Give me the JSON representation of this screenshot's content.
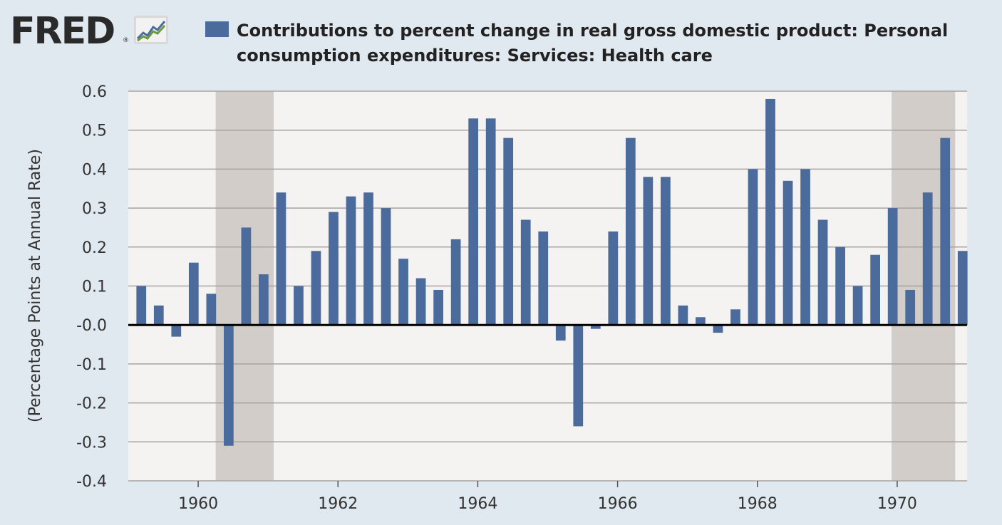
{
  "brand": {
    "name": "FRED",
    "reg": "®",
    "icon": "fred-chart-icon"
  },
  "colors": {
    "bar": "#4a6b9b",
    "recession": "#d2cdc9",
    "plot_bg": "#f5f3f2",
    "grid": "#a9a3a0",
    "zero": "#000000"
  },
  "chart_data": {
    "type": "bar",
    "title": "Contributions to percent change in real gross domestic product: Personal consumption expenditures: Services: Health care",
    "ylabel": "(Percentage Points at Annual Rate)",
    "xlabel": "",
    "ylim": [
      -0.4,
      0.6
    ],
    "xlim": [
      1959.0,
      1971.0
    ],
    "yticks": [
      0.6,
      0.5,
      0.4,
      0.3,
      0.2,
      0.1,
      -0.0,
      -0.1,
      -0.2,
      -0.3,
      -0.4
    ],
    "ytick_labels": [
      "0.6",
      "0.5",
      "0.4",
      "0.3",
      "0.2",
      "0.1",
      "-0.0",
      "-0.1",
      "-0.2",
      "-0.3",
      "-0.4"
    ],
    "xticks": [
      1960,
      1962,
      1964,
      1966,
      1968,
      1970
    ],
    "xtick_labels": [
      "1960",
      "1962",
      "1964",
      "1966",
      "1968",
      "1970"
    ],
    "recessions": [
      [
        1960.25,
        1961.08
      ],
      [
        1969.92,
        1970.83
      ]
    ],
    "categories": [
      "1959Q2",
      "1959Q3",
      "1959Q4",
      "1960Q1",
      "1960Q2",
      "1960Q3",
      "1960Q4",
      "1961Q1",
      "1961Q2",
      "1961Q3",
      "1961Q4",
      "1962Q1",
      "1962Q2",
      "1962Q3",
      "1962Q4",
      "1963Q1",
      "1963Q2",
      "1963Q3",
      "1963Q4",
      "1964Q1",
      "1964Q2",
      "1964Q3",
      "1964Q4",
      "1965Q1",
      "1965Q2",
      "1965Q3",
      "1965Q4",
      "1966Q1",
      "1966Q2",
      "1966Q3",
      "1966Q4",
      "1967Q1",
      "1967Q2",
      "1967Q3",
      "1967Q4",
      "1968Q1",
      "1968Q2",
      "1968Q3",
      "1968Q4",
      "1969Q1",
      "1969Q2",
      "1969Q3",
      "1969Q4",
      "1970Q1",
      "1970Q2",
      "1970Q3",
      "1970Q4",
      "1971Q1"
    ],
    "x": [
      1959.25,
      1959.5,
      1959.75,
      1960.0,
      1960.25,
      1960.5,
      1960.75,
      1961.0,
      1961.25,
      1961.5,
      1961.75,
      1962.0,
      1962.25,
      1962.5,
      1962.75,
      1963.0,
      1963.25,
      1963.5,
      1963.75,
      1964.0,
      1964.25,
      1964.5,
      1964.75,
      1965.0,
      1965.25,
      1965.5,
      1965.75,
      1966.0,
      1966.25,
      1966.5,
      1966.75,
      1967.0,
      1967.25,
      1967.5,
      1967.75,
      1968.0,
      1968.25,
      1968.5,
      1968.75,
      1969.0,
      1969.25,
      1969.5,
      1969.75,
      1970.0,
      1970.25,
      1970.5,
      1970.75,
      1971.0
    ],
    "values": [
      0.1,
      0.05,
      -0.03,
      0.16,
      0.08,
      -0.31,
      0.25,
      0.13,
      0.34,
      0.1,
      0.19,
      0.29,
      0.33,
      0.34,
      0.3,
      0.17,
      0.12,
      0.09,
      0.22,
      0.53,
      0.53,
      0.48,
      0.27,
      0.24,
      -0.04,
      -0.26,
      -0.01,
      0.24,
      0.48,
      0.38,
      0.38,
      0.05,
      0.02,
      -0.02,
      0.04,
      0.4,
      0.58,
      0.37,
      0.4,
      0.27,
      0.2,
      0.1,
      0.18,
      0.3,
      0.09,
      0.34,
      0.48,
      0.19
    ]
  }
}
